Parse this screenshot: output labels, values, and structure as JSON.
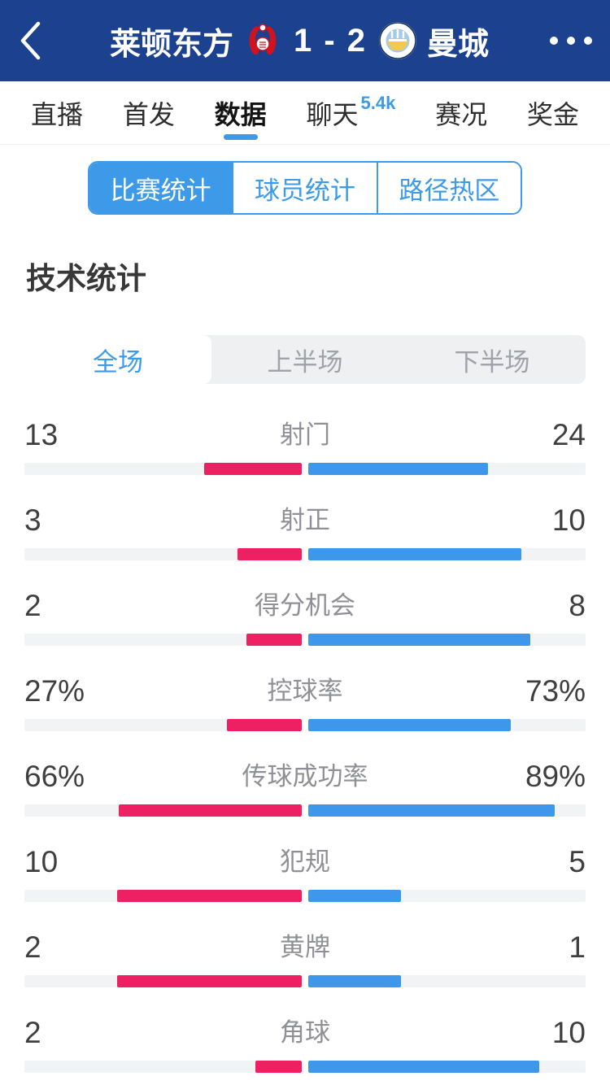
{
  "header": {
    "back_icon": "chevron-left",
    "home_team": "莱顿东方",
    "score": "1 - 2",
    "away_team": "曼城",
    "more_icon": "ellipsis"
  },
  "tabs": [
    {
      "label": "直播",
      "selected": false
    },
    {
      "label": "首发",
      "selected": false
    },
    {
      "label": "数据",
      "selected": true
    },
    {
      "label": "聊天",
      "selected": false,
      "badge": "5.4k"
    },
    {
      "label": "赛况",
      "selected": false
    },
    {
      "label": "奖金",
      "selected": false
    }
  ],
  "stat_tabs": [
    {
      "label": "比赛统计",
      "selected": true
    },
    {
      "label": "球员统计",
      "selected": false
    },
    {
      "label": "路径热区",
      "selected": false
    }
  ],
  "section_title": "技术统计",
  "period_tabs": [
    {
      "label": "全场",
      "selected": true
    },
    {
      "label": "上半场",
      "selected": false
    },
    {
      "label": "下半场",
      "selected": false
    }
  ],
  "stats": [
    {
      "label": "射门",
      "home": "13",
      "away": "24"
    },
    {
      "label": "射正",
      "home": "3",
      "away": "10"
    },
    {
      "label": "得分机会",
      "home": "2",
      "away": "8"
    },
    {
      "label": "控球率",
      "home": "27%",
      "away": "73%"
    },
    {
      "label": "传球成功率",
      "home": "66%",
      "away": "89%"
    },
    {
      "label": "犯规",
      "home": "10",
      "away": "5"
    },
    {
      "label": "黄牌",
      "home": "2",
      "away": "1"
    },
    {
      "label": "角球",
      "home": "2",
      "away": "10"
    }
  ],
  "colors": {
    "header_bg": "#1b418f",
    "accent": "#3d9ae8",
    "home_bar": "#ec2063",
    "away_bar": "#3e97ea",
    "track": "#f2f3f5",
    "label_gray": "#8f9095",
    "number_dark": "#3f3f3f",
    "period_bg": "#eef0f2",
    "period_inactive": "#9fa3a9"
  }
}
